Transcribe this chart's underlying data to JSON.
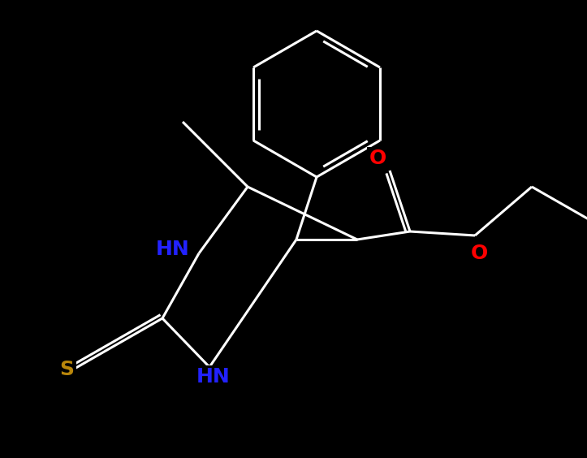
{
  "bg_color": "#000000",
  "bond_color_white": "#ffffff",
  "atom_colors": {
    "O": "#ff0000",
    "N": "#2222ff",
    "S": "#b8860b",
    "C": "#ffffff"
  },
  "bond_width": 2.2,
  "font_size": 18,
  "figsize": [
    7.23,
    5.64
  ],
  "dpi": 100
}
